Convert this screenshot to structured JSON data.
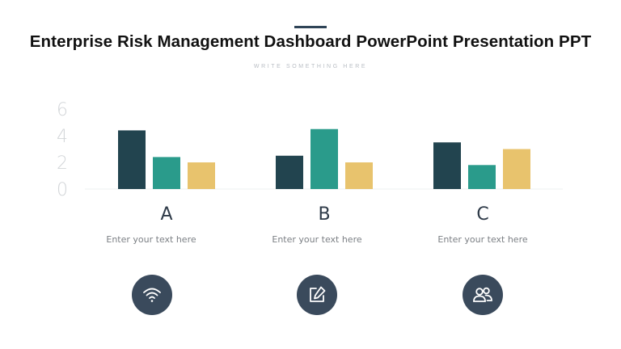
{
  "header": {
    "title": "Enterprise Risk Management Dashboard PowerPoint Presentation PPT",
    "subtitle": "WRITE SOMETHING HERE"
  },
  "chart_data": {
    "type": "bar",
    "categories": [
      "A",
      "B",
      "C"
    ],
    "series": [
      {
        "values": [
          4.4,
          2.5,
          3.5
        ],
        "color": "#22444f"
      },
      {
        "values": [
          2.4,
          4.5,
          1.8
        ],
        "color": "#2a9b8b"
      },
      {
        "values": [
          2.0,
          2.0,
          3.0
        ],
        "color": "#e8c36d"
      }
    ],
    "yticks": [
      0,
      2,
      4,
      6
    ],
    "ylim": [
      0,
      6
    ],
    "grid": false,
    "title": "",
    "xlabel": "",
    "ylabel": ""
  },
  "groups": [
    {
      "letter": "A",
      "text": "Enter your text here",
      "icon": "wifi-icon"
    },
    {
      "letter": "B",
      "text": "Enter your text here",
      "icon": "edit-icon"
    },
    {
      "letter": "C",
      "text": "Enter your text here",
      "icon": "users-icon"
    }
  ]
}
